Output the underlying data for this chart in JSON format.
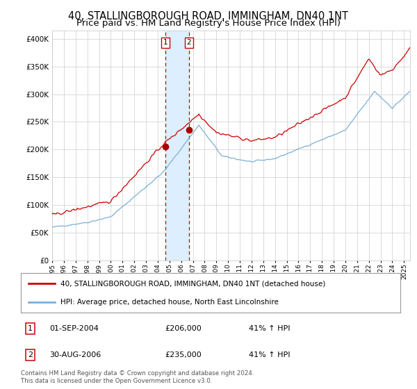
{
  "title1": "40, STALLINGBOROUGH ROAD, IMMINGHAM, DN40 1NT",
  "title2": "Price paid vs. HM Land Registry's House Price Index (HPI)",
  "ylabel_values": [
    "£0",
    "£50K",
    "£100K",
    "£150K",
    "£200K",
    "£250K",
    "£300K",
    "£350K",
    "£400K"
  ],
  "ylim": [
    0,
    415000
  ],
  "yticks": [
    0,
    50000,
    100000,
    150000,
    200000,
    250000,
    300000,
    350000,
    400000
  ],
  "x_start_year": 1995,
  "x_end_year": 2025,
  "sale1_date": 2004.67,
  "sale1_price": 206000,
  "sale2_date": 2006.66,
  "sale2_price": 235000,
  "hpi_line_color": "#7BAFD4",
  "price_line_color": "#CC0000",
  "sale_dot_color": "#AA0000",
  "highlight_color": "#DDEEFF",
  "vline_color": "#CC0000",
  "legend_label_red": "40, STALLINGBOROUGH ROAD, IMMINGHAM, DN40 1NT (detached house)",
  "legend_label_blue": "HPI: Average price, detached house, North East Lincolnshire",
  "table_row1": [
    "1",
    "01-SEP-2004",
    "£206,000",
    "41% ↑ HPI"
  ],
  "table_row2": [
    "2",
    "30-AUG-2006",
    "£235,000",
    "41% ↑ HPI"
  ],
  "footer": "Contains HM Land Registry data © Crown copyright and database right 2024.\nThis data is licensed under the Open Government Licence v3.0.",
  "background_color": "#FFFFFF",
  "grid_color": "#CCCCCC",
  "title_fontsize": 10.5,
  "subtitle_fontsize": 9.5
}
